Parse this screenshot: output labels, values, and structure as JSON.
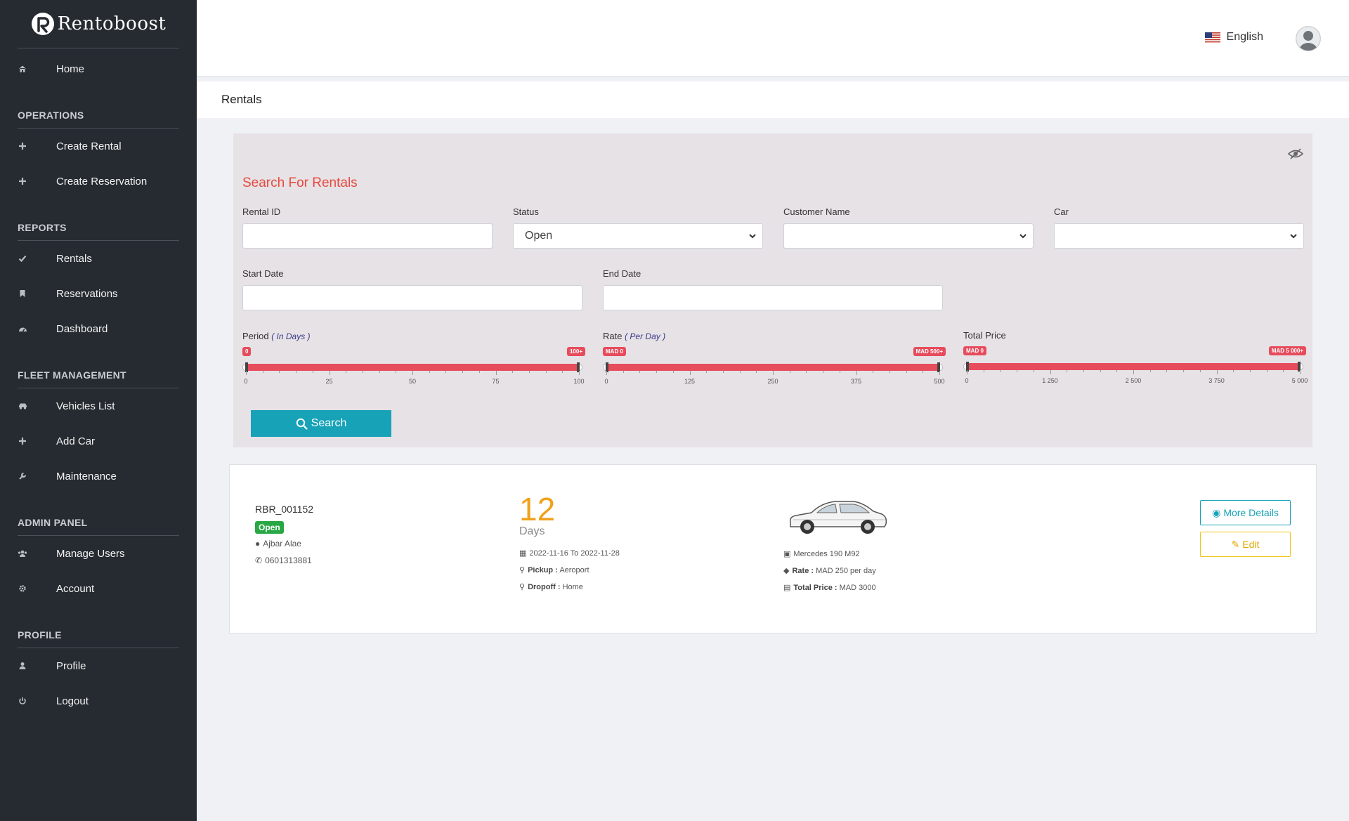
{
  "brand": {
    "name": "Rentoboost"
  },
  "sidebar": {
    "items": [
      {
        "type": "item",
        "label": "Home",
        "icon": "home-icon"
      },
      {
        "type": "section",
        "label": "OPERATIONS"
      },
      {
        "type": "item",
        "label": "Create Rental",
        "icon": "plus-icon"
      },
      {
        "type": "item",
        "label": "Create Reservation",
        "icon": "plus-icon"
      },
      {
        "type": "section",
        "label": "REPORTS"
      },
      {
        "type": "item",
        "label": "Rentals",
        "icon": "check-icon"
      },
      {
        "type": "item",
        "label": "Reservations",
        "icon": "bookmark-icon"
      },
      {
        "type": "item",
        "label": "Dashboard",
        "icon": "dashboard-icon"
      },
      {
        "type": "section",
        "label": "FLEET MANAGEMENT"
      },
      {
        "type": "item",
        "label": "Vehicles List",
        "icon": "car-icon"
      },
      {
        "type": "item",
        "label": "Add Car",
        "icon": "plus-icon"
      },
      {
        "type": "item",
        "label": "Maintenance",
        "icon": "wrench-icon"
      },
      {
        "type": "section",
        "label": "ADMIN PANEL"
      },
      {
        "type": "item",
        "label": "Manage Users",
        "icon": "users-icon"
      },
      {
        "type": "item",
        "label": "Account",
        "icon": "gear-icon"
      },
      {
        "type": "section",
        "label": "PROFILE"
      },
      {
        "type": "item",
        "label": "Profile",
        "icon": "user-icon"
      },
      {
        "type": "item",
        "label": "Logout",
        "icon": "power-icon"
      }
    ]
  },
  "topbar": {
    "language": "English"
  },
  "page": {
    "title": "Rentals"
  },
  "search": {
    "title": "Search For Rentals",
    "rental_id": {
      "label": "Rental ID",
      "value": ""
    },
    "status": {
      "label": "Status",
      "value": "Open"
    },
    "customer": {
      "label": "Customer Name",
      "value": ""
    },
    "car": {
      "label": "Car",
      "value": ""
    },
    "start_date": {
      "label": "Start Date",
      "value": ""
    },
    "end_date": {
      "label": "End Date",
      "value": ""
    },
    "period": {
      "label": "Period",
      "unit": "( In Days )",
      "min_tag": "0",
      "max_tag": "100+",
      "ticks": [
        "0",
        "25",
        "50",
        "75",
        "100"
      ],
      "range": [
        0,
        100
      ]
    },
    "rate": {
      "label": "Rate",
      "unit": "( Per Day )",
      "min_tag": "MAD 0",
      "max_tag": "MAD 500+",
      "ticks": [
        "0",
        "125",
        "250",
        "375",
        "500"
      ],
      "range": [
        0,
        500
      ]
    },
    "total": {
      "label": "Total Price",
      "min_tag": "MAD 0",
      "max_tag": "MAD 5 000+",
      "ticks": [
        "0",
        "1 250",
        "2 500",
        "3 750",
        "5 000"
      ],
      "range": [
        0,
        5000
      ]
    },
    "button": "Search"
  },
  "rental": {
    "id": "RBR_001152",
    "status": "Open",
    "customer": "Ajbar Alae",
    "phone": "0601313881",
    "days": "12",
    "days_label": "Days",
    "dates": "2022-11-16 To 2022-11-28",
    "pickup_label": "Pickup :",
    "pickup": "Aeroport",
    "dropoff_label": "Dropoff :",
    "dropoff": "Home",
    "car": "Mercedes 190 M92",
    "rate_label": "Rate :",
    "rate": "MAD 250 per day",
    "total_label": "Total Price :",
    "total": "MAD 3000",
    "more_details": "More Details",
    "edit": "Edit"
  },
  "colors": {
    "accent": "#e64a3e",
    "slider": "#e74c5c",
    "search_button": "#17a2b8",
    "open_badge": "#28a745",
    "days": "#f0a11b",
    "sidebar": "#262b31"
  }
}
